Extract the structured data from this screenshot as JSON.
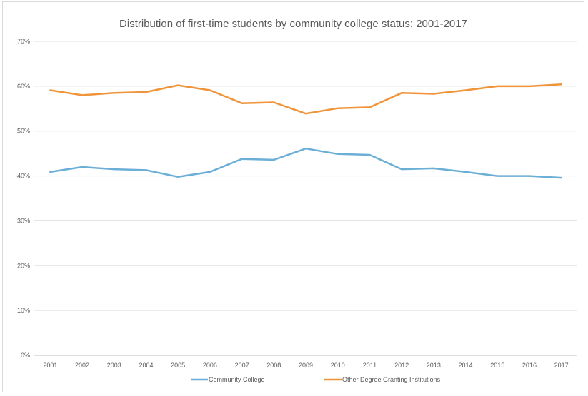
{
  "chart_data": {
    "type": "line",
    "title": "Distribution of first-time students by community college status: 2001-2017",
    "xlabel": "",
    "ylabel": "",
    "categories": [
      "2001",
      "2002",
      "2003",
      "2004",
      "2005",
      "2006",
      "2007",
      "2008",
      "2009",
      "2010",
      "2011",
      "2012",
      "2013",
      "2014",
      "2015",
      "2016",
      "2017"
    ],
    "ylim": [
      0,
      70
    ],
    "yticks": [
      "0%",
      "10%",
      "20%",
      "30%",
      "40%",
      "50%",
      "60%",
      "70%"
    ],
    "grid": true,
    "legend_position": "bottom",
    "series": [
      {
        "name": "Community College",
        "color": "#6baed6",
        "values": [
          40.9,
          42.0,
          41.5,
          41.3,
          39.8,
          40.9,
          43.8,
          43.6,
          46.1,
          44.9,
          44.7,
          41.5,
          41.7,
          40.9,
          40.0,
          40.0,
          39.6
        ]
      },
      {
        "name": "Other Degree Granting Institutions",
        "color": "#f0943a",
        "values": [
          59.1,
          58.0,
          58.5,
          58.7,
          60.2,
          59.1,
          56.2,
          56.4,
          53.9,
          55.1,
          55.3,
          58.5,
          58.3,
          59.1,
          60.0,
          60.0,
          60.4
        ]
      }
    ]
  }
}
